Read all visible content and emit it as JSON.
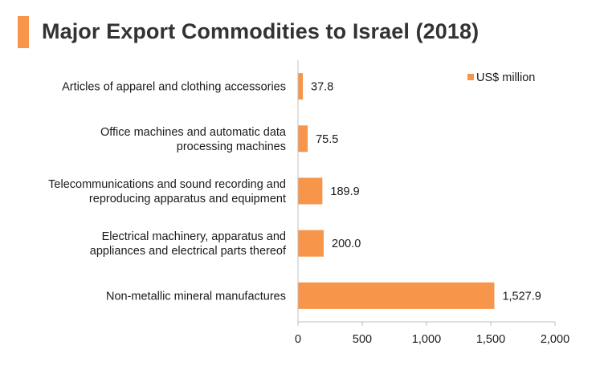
{
  "colors": {
    "accent": "#f7964a",
    "axis": "#bfbfbf",
    "text": "#1a1a1a",
    "title": "#333333"
  },
  "chart_data": {
    "type": "bar",
    "orientation": "horizontal",
    "title": "Major Export Commodities to Israel (2018)",
    "categories": [
      [
        "Articles of apparel and clothing accessories"
      ],
      [
        "Office machines and automatic data",
        "processing machines"
      ],
      [
        "Telecommunications and sound recording and",
        "reproducing apparatus and equipment"
      ],
      [
        "Electrical machinery, apparatus and",
        "appliances and electrical parts thereof"
      ],
      [
        "Non-metallic mineral manufactures"
      ]
    ],
    "series": [
      {
        "name": "US$ million",
        "values": [
          37.8,
          75.5,
          189.9,
          200.0,
          1527.9
        ]
      }
    ],
    "value_labels": [
      "37.8",
      "75.5",
      "189.9",
      "200.0",
      "1,527.9"
    ],
    "xlim": [
      0,
      2000
    ],
    "xticks": [
      0,
      500,
      1000,
      1500,
      2000
    ],
    "xtick_labels": [
      "0",
      "500",
      "1,000",
      "1,500",
      "2,000"
    ],
    "legend_position": "top-right",
    "grid": false
  }
}
